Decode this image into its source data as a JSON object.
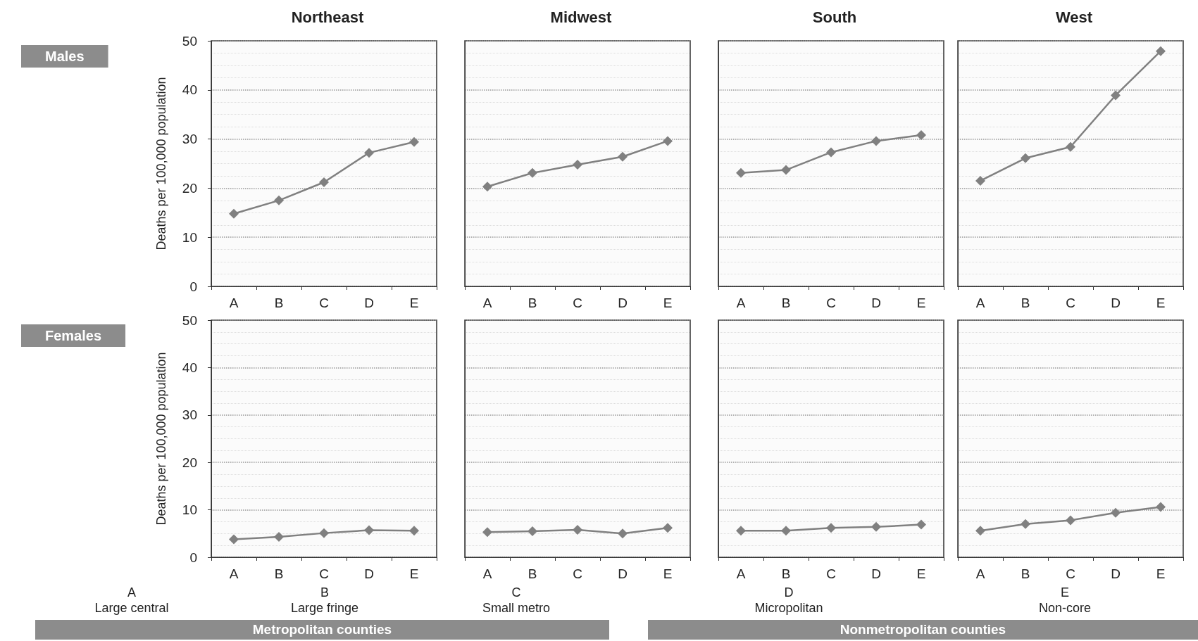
{
  "chart_data": [
    {
      "type": "line",
      "title": "Northeast",
      "ylabel": "Deaths per 100,000 population",
      "annotations": [
        "Males"
      ],
      "categories": [
        "A",
        "B",
        "C",
        "D",
        "E"
      ],
      "series": [
        {
          "color": "#808080",
          "values": [
            14.8,
            17.5,
            21.2,
            27.2,
            29.4
          ]
        }
      ],
      "ylim": [
        0,
        50
      ],
      "yticks": [
        0,
        10,
        20,
        30,
        40,
        50
      ],
      "grid": "y",
      "marker": "diamond"
    },
    {
      "type": "line",
      "title": "Midwest",
      "categories": [
        "A",
        "B",
        "C",
        "D",
        "E"
      ],
      "series": [
        {
          "color": "#808080",
          "values": [
            20.3,
            23.1,
            24.8,
            26.4,
            29.6
          ]
        }
      ],
      "ylim": [
        0,
        50
      ],
      "yticks": [
        0,
        10,
        20,
        30,
        40,
        50
      ],
      "tick_labels": "x",
      "grid": "y",
      "marker": "diamond"
    },
    {
      "type": "line",
      "title": "South",
      "categories": [
        "A",
        "B",
        "C",
        "D",
        "E"
      ],
      "series": [
        {
          "color": "#808080",
          "values": [
            23.1,
            23.7,
            27.3,
            29.6,
            30.8
          ]
        }
      ],
      "ylim": [
        0,
        50
      ],
      "yticks": [
        0,
        10,
        20,
        30,
        40,
        50
      ],
      "tick_labels": "x",
      "grid": "y",
      "marker": "diamond"
    },
    {
      "type": "line",
      "title": "West",
      "categories": [
        "A",
        "B",
        "C",
        "D",
        "E"
      ],
      "series": [
        {
          "color": "#808080",
          "values": [
            21.5,
            26.1,
            28.4,
            38.9,
            47.9
          ]
        }
      ],
      "ylim": [
        0,
        50
      ],
      "yticks": [
        0,
        10,
        20,
        30,
        40,
        50
      ],
      "tick_labels": "x",
      "grid": "y",
      "marker": "diamond"
    },
    {
      "type": "line",
      "ylabel": "Deaths per 100,000 population",
      "annotations": [
        "Females"
      ],
      "categories": [
        "A",
        "B",
        "C",
        "D",
        "E"
      ],
      "series": [
        {
          "color": "#808080",
          "values": [
            3.8,
            4.3,
            5.1,
            5.7,
            5.6
          ]
        }
      ],
      "ylim": [
        0,
        50
      ],
      "yticks": [
        0,
        10,
        20,
        30,
        40,
        50
      ],
      "grid": "y",
      "marker": "diamond"
    },
    {
      "type": "line",
      "categories": [
        "A",
        "B",
        "C",
        "D",
        "E"
      ],
      "series": [
        {
          "color": "#808080",
          "values": [
            5.3,
            5.5,
            5.8,
            5.0,
            6.2
          ]
        }
      ],
      "ylim": [
        0,
        50
      ],
      "yticks": [
        0,
        10,
        20,
        30,
        40,
        50
      ],
      "tick_labels": "x",
      "grid": "y",
      "marker": "diamond"
    },
    {
      "type": "line",
      "categories": [
        "A",
        "B",
        "C",
        "D",
        "E"
      ],
      "series": [
        {
          "color": "#808080",
          "values": [
            5.6,
            5.6,
            6.2,
            6.4,
            6.9
          ]
        }
      ],
      "ylim": [
        0,
        50
      ],
      "yticks": [
        0,
        10,
        20,
        30,
        40,
        50
      ],
      "tick_labels": "x",
      "grid": "y",
      "marker": "diamond"
    },
    {
      "type": "line",
      "categories": [
        "A",
        "B",
        "C",
        "D",
        "E"
      ],
      "series": [
        {
          "color": "#808080",
          "values": [
            5.6,
            7.0,
            7.8,
            9.4,
            10.6
          ]
        }
      ],
      "ylim": [
        0,
        50
      ],
      "yticks": [
        0,
        10,
        20,
        30,
        40,
        50
      ],
      "tick_labels": "x",
      "grid": "y",
      "marker": "diamond"
    },
    {
      "type": "other",
      "annotations": [
        "A",
        "Large central",
        "B",
        "Large fringe",
        "C",
        "Small metro",
        "D",
        "Micropolitan",
        "E",
        "Non-core",
        "Metropolitan counties",
        "Nonmetropolitan counties"
      ]
    }
  ]
}
